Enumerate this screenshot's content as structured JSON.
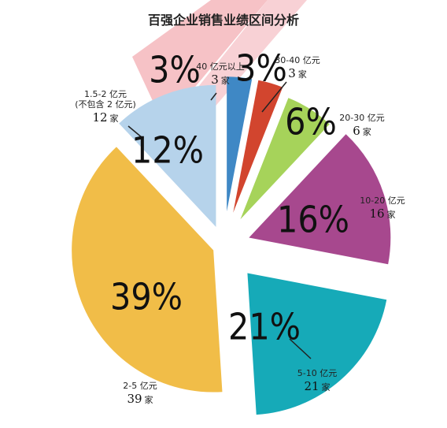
{
  "chart_data": {
    "type": "pie",
    "title": "百强企业销售业绩区间分析",
    "colors": {
      "40_above": "#3f88c5",
      "30_40": "#d2452e",
      "20_30": "#a6d35a",
      "10_20": "#a7488e",
      "5_10": "#16aab8",
      "2_5": "#f1bd48",
      "1.5_2": "#b6d3eb",
      "watermark": "#d8324a"
    },
    "unit": "家",
    "slices": [
      {
        "key": "40_above",
        "range_label": "40 亿元以上",
        "percent_label": "3%",
        "count": 3,
        "value": 3
      },
      {
        "key": "30_40",
        "range_label": "30-40 亿元",
        "percent_label": "3%",
        "count": 3,
        "value": 3
      },
      {
        "key": "20_30",
        "range_label": "20-30 亿元",
        "percent_label": "6%",
        "count": 6,
        "value": 6
      },
      {
        "key": "10_20",
        "range_label": "10-20 亿元",
        "percent_label": "16%",
        "count": 16,
        "value": 16
      },
      {
        "key": "5_10",
        "range_label": "5-10 亿元",
        "percent_label": "21%",
        "count": 21,
        "value": 21
      },
      {
        "key": "2_5",
        "range_label": "2-5 亿元",
        "percent_label": "39%",
        "count": 39,
        "value": 39
      },
      {
        "key": "1.5_2",
        "range_label": "1.5-2 亿元",
        "range_label_2": "(不包含 2 亿元)",
        "percent_label": "12%",
        "count": 12,
        "value": 12
      }
    ]
  }
}
